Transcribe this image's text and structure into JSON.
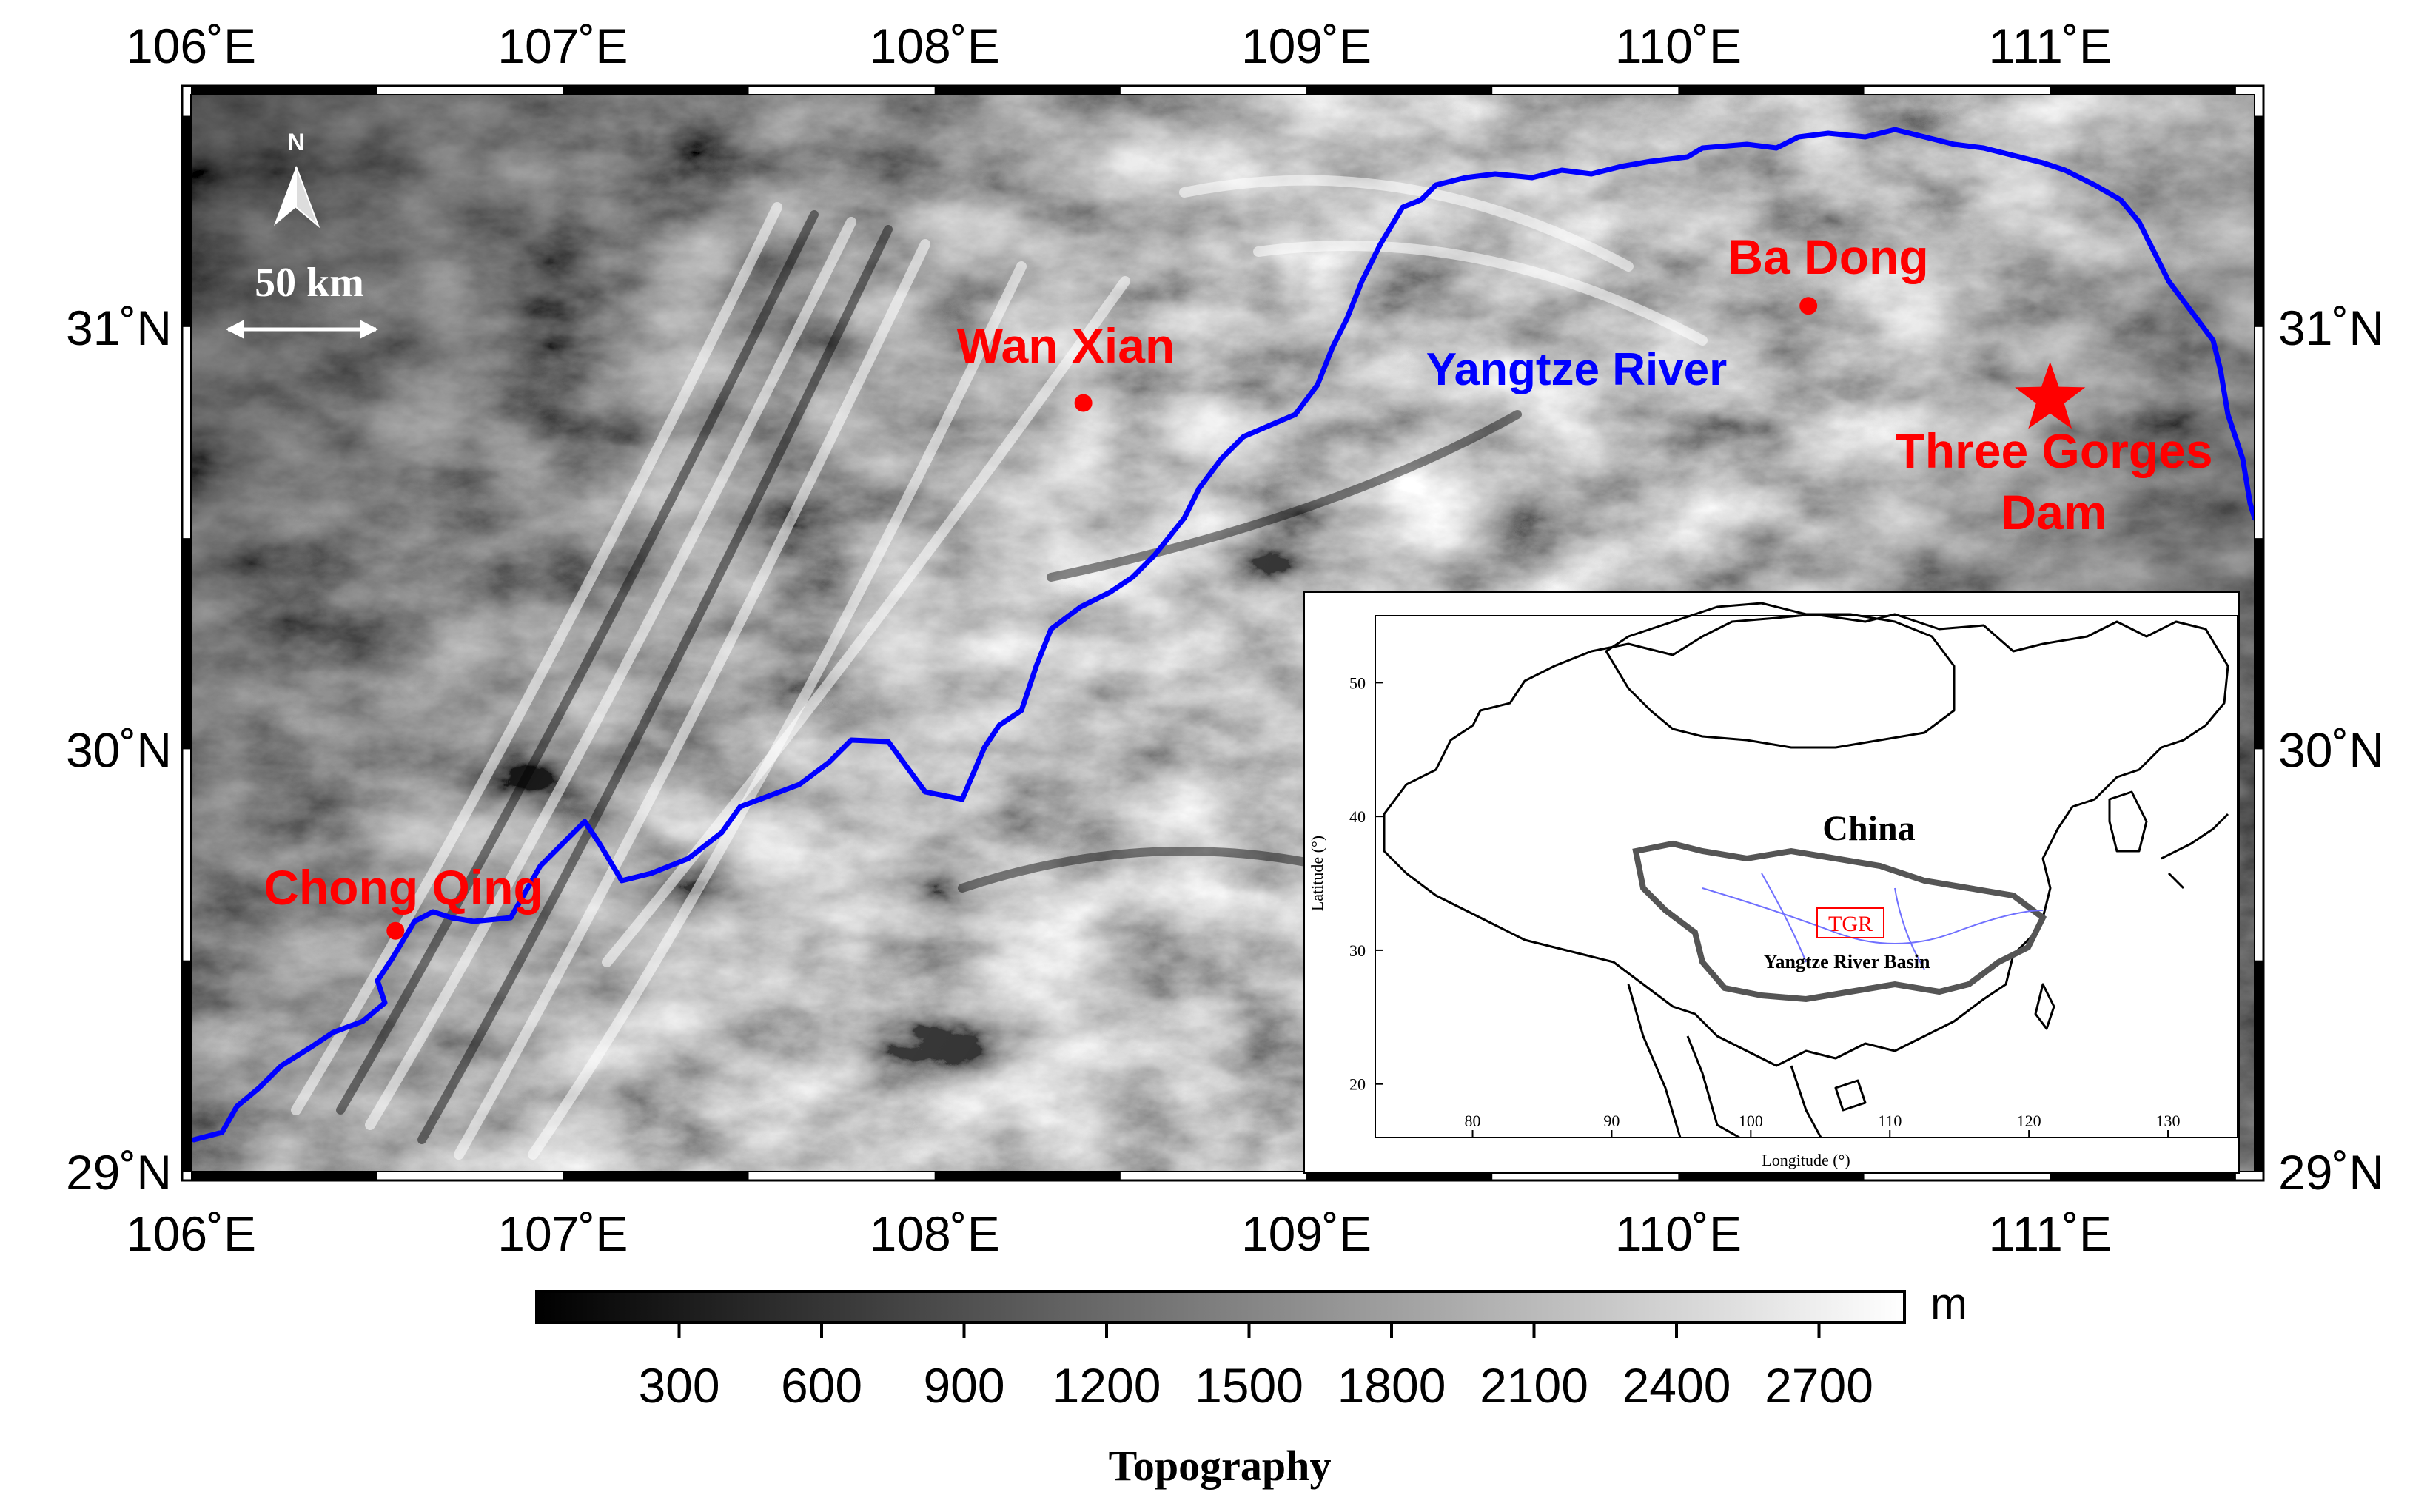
{
  "map": {
    "lon_ticks": [
      "106˚E",
      "107˚E",
      "108˚E",
      "109˚E",
      "110˚E",
      "111˚E"
    ],
    "lat_ticks": [
      "31˚N",
      "30˚N",
      "29˚N"
    ],
    "extent": {
      "lon": [
        106.0,
        111.55
      ],
      "lat": [
        29.0,
        31.55
      ]
    },
    "north_arrow": {
      "letter": "N",
      "icon": "north-arrow-icon"
    },
    "scale_bar": {
      "label": "50 km"
    },
    "river": {
      "name": "Yangtze River",
      "color": "#0000ff"
    },
    "places": [
      {
        "name": "Chong Qing",
        "lon": 106.55,
        "lat": 29.57,
        "marker": "dot"
      },
      {
        "name": "Wan Xian",
        "lon": 108.4,
        "lat": 30.82,
        "marker": "dot"
      },
      {
        "name": "Ba Dong",
        "lon": 110.35,
        "lat": 31.05,
        "marker": "dot"
      },
      {
        "name_lines": [
          "Three Gorges",
          "Dam"
        ],
        "lon": 111.0,
        "lat": 30.83,
        "marker": "star"
      }
    ],
    "label_color": "#ff0000"
  },
  "inset": {
    "country_label": "China",
    "basin_label": "Yangtze River Basin",
    "tgr_label": "TGR",
    "xlabel": "Longitude (°)",
    "ylabel": "Latitude (°)",
    "x_ticks": [
      "80",
      "90",
      "100",
      "110",
      "120",
      "130"
    ],
    "y_ticks": [
      "50",
      "40",
      "30",
      "20"
    ]
  },
  "colorbar": {
    "title": "Topography",
    "unit": "m",
    "ticks": [
      "300",
      "600",
      "900",
      "1200",
      "1500",
      "1800",
      "2100",
      "2400",
      "2700"
    ]
  }
}
